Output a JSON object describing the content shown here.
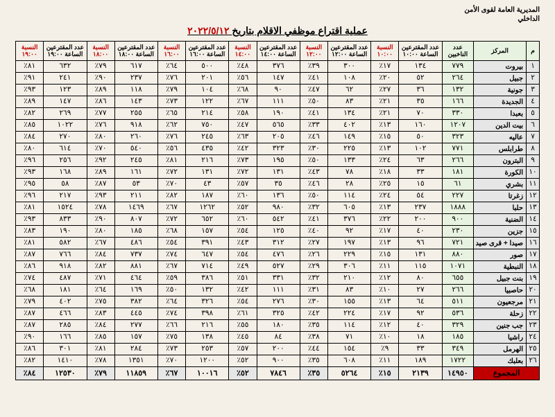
{
  "org_line1": "المديرية العامة لقوى الأمن",
  "org_line2": "الداخلي",
  "title_prefix": "عملية اقتراع موظفي الاقلام بتاريخ",
  "title_date": "٢٠٢٢/٥/١٢",
  "headers": {
    "idx": "م",
    "center": "المركز",
    "base": "عدد الناخبين",
    "c10": "عدد المقترعين الساعة ١٠:٠٠",
    "p10": "النسبة ١٠:٠٠",
    "c12": "عدد المقترعين الساعة ١٢:٠٠",
    "p12": "النسبة ١٢:٠٠",
    "c14": "عدد المقترعين الساعة ١٤:٠٠",
    "p14": "النسبة ١٤:٠٠",
    "c16": "عدد المقترعين الساعة ١٦:٠٠",
    "p16": "النسبة ١٦:٠٠",
    "c18": "عدد المقترعين الساعة ١٨:٠٠",
    "p18": "النسبة ١٨:٠٠",
    "c19": "عدد المقترعين الساعة ١٩:٠٠",
    "p19": "النسبة ١٩:٠٠"
  },
  "rows": [
    {
      "i": "١",
      "name": "بيروت",
      "base": "٧٧٩",
      "c10": "١٣٤",
      "p10": "١٧٪",
      "c12": "٣٠٠",
      "p12": "٣٩٪",
      "c14": "٣٧٦",
      "p14": "٤٨٪",
      "c16": "٥٠٠",
      "p16": "٦٤٪",
      "c18": "٦١٧",
      "p18": "٧٩٪",
      "c19": "٦٣٢",
      "p19": "٨١٪"
    },
    {
      "i": "٢",
      "name": "جبيل",
      "base": "٢٦٤",
      "c10": "٥٢",
      "p10": "٢٠٪",
      "c12": "١٠٨",
      "p12": "٤١٪",
      "c14": "١٤٧",
      "p14": "٥٦٪",
      "c16": "٢٠١",
      "p16": "٧٦٪",
      "c18": "٢٣٧",
      "p18": "٩٠٪",
      "c19": "٢٤١",
      "p19": "٩١٪"
    },
    {
      "i": "٣",
      "name": "جونية",
      "base": "١٣٢",
      "c10": "٣٦",
      "p10": "٢٧٪",
      "c12": "٦٢",
      "p12": "٤٧٪",
      "c14": "٩٠",
      "p14": "٦٨٪",
      "c16": "١٠٤",
      "p16": "٧٩٪",
      "c18": "١١٨",
      "p18": "٨٩٪",
      "c19": "١٢٣",
      "p19": "٩٣٪"
    },
    {
      "i": "٤",
      "name": "الجديدة",
      "base": "١٦٦",
      "c10": "٣٥",
      "p10": "٢١٪",
      "c12": "٨٣",
      "p12": "٥٠٪",
      "c14": "١١١",
      "p14": "٦٧٪",
      "c16": "١٢٢",
      "p16": "٧٣٪",
      "c18": "١٤٣",
      "p18": "٨٦٪",
      "c19": "١٤٧",
      "p19": "٨٩٪"
    },
    {
      "i": "٥",
      "name": "بعبدا",
      "base": "٣٣٠",
      "c10": "٧٠",
      "p10": "٢١٪",
      "c12": "١٣٤",
      "p12": "٤١٪",
      "c14": "١٩٠",
      "p14": "٥٨٪",
      "c16": "٢١٤",
      "p16": "٦٥٪",
      "c18": "٢٥٥",
      "p18": "٧٧٪",
      "c19": "٢٦٩",
      "p19": "٨٢٪"
    },
    {
      "i": "٦",
      "name": "بيت الدين",
      "base": "١٢٠٧",
      "c10": "١٦٠",
      "p10": "١٣٪",
      "c12": "٤٠٢",
      "p12": "٣٣٪",
      "c14": "٥٦٥",
      "p14": "٤٧٪",
      "c16": "٧٥٠",
      "p16": "٦٢٪",
      "c18": "٩١٨",
      "p18": "٧٦٪",
      "c19": "١٠٢٢",
      "p19": "٨٥٪"
    },
    {
      "i": "٧",
      "name": "عاليه",
      "base": "٣٢٣",
      "c10": "٥٠",
      "p10": "١٥٪",
      "c12": "١٤٩",
      "p12": "٤٦٪",
      "c14": "٢٠٥",
      "p14": "٦٣٪",
      "c16": "٢٤٥",
      "p16": "٧٦٪",
      "c18": "٢٦٠",
      "p18": "٨٠٪",
      "c19": "٢٧٠",
      "p19": "٨٤٪"
    },
    {
      "i": "٨",
      "name": "طرابلس",
      "base": "٧٧١",
      "c10": "١٠٢",
      "p10": "١٣٪",
      "c12": "٢٢٥",
      "p12": "٣٠٪",
      "c14": "٣٢٣",
      "p14": "٤٢٪",
      "c16": "٤٣٥",
      "p16": "٥٦٪",
      "c18": "٥٤٠",
      "p18": "٧٠٪",
      "c19": "٦١٤",
      "p19": "٨٠٪"
    },
    {
      "i": "٩",
      "name": "البترون",
      "base": "٢٦٦",
      "c10": "٦٣",
      "p10": "٢٤٪",
      "c12": "١٣٣",
      "p12": "٥٠٪",
      "c14": "١٩٥",
      "p14": "٧٣٪",
      "c16": "٢١٦",
      "p16": "٨١٪",
      "c18": "٢٤٥",
      "p18": "٩٢٪",
      "c19": "٢٥٦",
      "p19": "٩٦٪"
    },
    {
      "i": "١٠",
      "name": "الكورة",
      "base": "١٨١",
      "c10": "٣٣",
      "p10": "١٨٪",
      "c12": "٧٨",
      "p12": "٤٣٪",
      "c14": "١٣١",
      "p14": "٧٢٪",
      "c16": "١٣١",
      "p16": "٧٢٪",
      "c18": "١٦١",
      "p18": "٨٩٪",
      "c19": "١٦٨",
      "p19": "٩٣٪"
    },
    {
      "i": "١١",
      "name": "بشري",
      "base": "٦١",
      "c10": "١٥",
      "p10": "٢٥٪",
      "c12": "٢٨",
      "p12": "٤٦٪",
      "c14": "٣٥",
      "p14": "٥٧٪",
      "c16": "٤٣",
      "p16": "٧٠٪",
      "c18": "٥٣",
      "p18": "٨٧٪",
      "c19": "٥٨",
      "p19": "٩٥٪"
    },
    {
      "i": "١٢",
      "name": "زغرتا",
      "base": "٢٢٧",
      "c10": "٥٤",
      "p10": "٢٤٪",
      "c12": "١١٤",
      "p12": "٥٠٪",
      "c14": "١٣٦",
      "p14": "٦٠٪",
      "c16": "١٨٧",
      "p16": "٨٢٪",
      "c18": "٢١١",
      "p18": "٩٣٪",
      "c19": "٢١٧",
      "p19": "٩٦٪"
    },
    {
      "i": "١٣",
      "name": "حلبا",
      "base": "١٨٨٨",
      "c10": "٢٣٧",
      "p10": "١٣٪",
      "c12": "٦٠٥",
      "p12": "٣٢٪",
      "c14": "٩٨٠",
      "p14": "٥٢٪",
      "c16": "١٢٦٢",
      "p16": "٦٧٪",
      "c18": "١٤٦٩",
      "p18": "٧٨٪",
      "c19": "١٥٢٤",
      "p19": "٨١٪"
    },
    {
      "i": "١٤",
      "name": "الضنية",
      "base": "٩٠٠",
      "c10": "٢٠٠",
      "p10": "٢٢٪",
      "c12": "٣٧٦",
      "p12": "٤١٪",
      "c14": "٥٤٢",
      "p14": "٦٠٪",
      "c16": "٦٥٢",
      "p16": "٧٢٪",
      "c18": "٨٠٧",
      "p18": "٩٠٪",
      "c19": "٨٣٣",
      "p19": "٩٣٪"
    },
    {
      "i": "١٥",
      "name": "جزين",
      "base": "٢٣٠",
      "c10": "٤٠",
      "p10": "١٧٪",
      "c12": "٩٢",
      "p12": "٤٠٪",
      "c14": "١٢٥",
      "p14": "٥٤٪",
      "c16": "١٥٧",
      "p16": "٦٨٪",
      "c18": "١٨٥",
      "p18": "٨٠٪",
      "c19": "١٩٠",
      "p19": "٨٣٪"
    },
    {
      "i": "١٦",
      "name": "صيدا + قرى صيد",
      "base": "٧٢١",
      "c10": "٩٦",
      "p10": "١٣٪",
      "c12": "١٩٧",
      "p12": "٢٧٪",
      "c14": "٣١٢",
      "p14": "٤٣٪",
      "c16": "٣٩١",
      "p16": "٥٤٪",
      "c18": "٤٨٦",
      "p18": "٦٧٪",
      "c19": "٥٨٢",
      "p19": "٨١٪"
    },
    {
      "i": "١٧",
      "name": "صور",
      "base": "٨٨٠",
      "c10": "١٣١",
      "p10": "١٥٪",
      "c12": "٢٢٩",
      "p12": "٢٦٪",
      "c14": "٤٧٦",
      "p14": "٥٤٪",
      "c16": "٦٤٧",
      "p16": "٧٤٪",
      "c18": "٧٣٧",
      "p18": "٨٤٪",
      "c19": "٧٦٦",
      "p19": "٨٧٪"
    },
    {
      "i": "١٨",
      "name": "النبطية",
      "base": "١٠٧١",
      "c10": "١١٥",
      "p10": "١١٪",
      "c12": "٣٠٦",
      "p12": "٢٩٪",
      "c14": "٥٢٧",
      "p14": "٤٩٪",
      "c16": "٧١٤",
      "p16": "٦٧٪",
      "c18": "٨٨١",
      "p18": "٨٢٪",
      "c19": "٩١٨",
      "p19": "٨٦٪"
    },
    {
      "i": "١٩",
      "name": "بنت جبيل",
      "base": "٦٥٥",
      "c10": "٨٠",
      "p10": "١٢٪",
      "c12": "٢١٠",
      "p12": "٣٢٪",
      "c14": "٣٣١",
      "p14": "٥١٪",
      "c16": "٣٨٦",
      "p16": "٥٩٪",
      "c18": "٤٦٤",
      "p18": "٧١٪",
      "c19": "٤٨٧",
      "p19": "٧٤٪"
    },
    {
      "i": "٢٠",
      "name": "حاصبيا",
      "base": "٢٦٦",
      "c10": "٢٧",
      "p10": "١٠٪",
      "c12": "٨٣",
      "p12": "٣١٪",
      "c14": "١١١",
      "p14": "٤٢٪",
      "c16": "١٣٢",
      "p16": "٥٠٪",
      "c18": "١٦٩",
      "p18": "٦٤٪",
      "c19": "١٨١",
      "p19": "٦٨٪"
    },
    {
      "i": "٢١",
      "name": "مرجعيون",
      "base": "٥١١",
      "c10": "٦٤",
      "p10": "١٣٪",
      "c12": "١٥٥",
      "p12": "٣٠٪",
      "c14": "٢٧٦",
      "p14": "٥٤٪",
      "c16": "٣٢٦",
      "p16": "٦٤٪",
      "c18": "٣٨٢",
      "p18": "٧٥٪",
      "c19": "٤٠٢",
      "p19": "٧٩٪"
    },
    {
      "i": "٢٢",
      "name": "زحلة",
      "base": "٥٣٦",
      "c10": "٩٢",
      "p10": "١٧٪",
      "c12": "٢٢٤",
      "p12": "٤٢٪",
      "c14": "٣٢٥",
      "p14": "٦١٪",
      "c16": "٣٩٨",
      "p16": "٧٤٪",
      "c18": "٤٤٥",
      "p18": "٨٣٪",
      "c19": "٤٦٦",
      "p19": "٨٧٪"
    },
    {
      "i": "٢٣",
      "name": "جب جنين",
      "base": "٣٢٩",
      "c10": "٤٠",
      "p10": "١٢٪",
      "c12": "١١٤",
      "p12": "٣٥٪",
      "c14": "١٨٠",
      "p14": "٥٥٪",
      "c16": "٢١٦",
      "p16": "٦٦٪",
      "c18": "٢٧٧",
      "p18": "٨٤٪",
      "c19": "٢٨٥",
      "p19": "٨٧٪"
    },
    {
      "i": "٢٤",
      "name": "راشيا",
      "base": "١٨٥",
      "c10": "١٨",
      "p10": "١٠٪",
      "c12": "٧١",
      "p12": "٣٨٪",
      "c14": "٨٤",
      "p14": "٤٥٪",
      "c16": "١٣٨",
      "p16": "٧٥٪",
      "c18": "١٥٧",
      "p18": "٨٥٪",
      "c19": "١٦٦",
      "p19": "٩٠٪"
    },
    {
      "i": "٢٥",
      "name": "الهرمل",
      "base": "٣٤٩",
      "c10": "٣٣",
      "p10": "٩٪",
      "c12": "١٥٤",
      "p12": "٤٤٪",
      "c14": "٢٠٠",
      "p14": "٥٧٪",
      "c16": "٢٥٣",
      "p16": "٧٣٪",
      "c18": "٢٨٤",
      "p18": "٨١٪",
      "c19": "٣٠١",
      "p19": "٨٦٪"
    },
    {
      "i": "٢٦",
      "name": "بعلبك",
      "base": "١٧٢٢",
      "c10": "١٨٩",
      "p10": "١١٪",
      "c12": "٦٠٨",
      "p12": "٣٥٪",
      "c14": "٩٠٠",
      "p14": "٥٢٪",
      "c16": "١٢٠٠",
      "p16": "٧٠٪",
      "c18": "١٣٥١",
      "p18": "٧٨٪",
      "c19": "١٤١٠",
      "p19": "٨٢٪"
    }
  ],
  "total": {
    "label": "المجموع",
    "base": "١٤٩٥٠",
    "c10": "٢١٣٩",
    "p10": "١٥٪",
    "c12": "٥٢٦٤",
    "p12": "٣٥٪",
    "c14": "٧٨٤٦",
    "p14": "٥٢٪",
    "c16": "١٠٠١٦",
    "p16": "٦٧٪",
    "c18": "١١٨٥٩",
    "p18": "٧٩٪",
    "c19": "١٢٥٣٠",
    "p19": "٨٤٪"
  }
}
